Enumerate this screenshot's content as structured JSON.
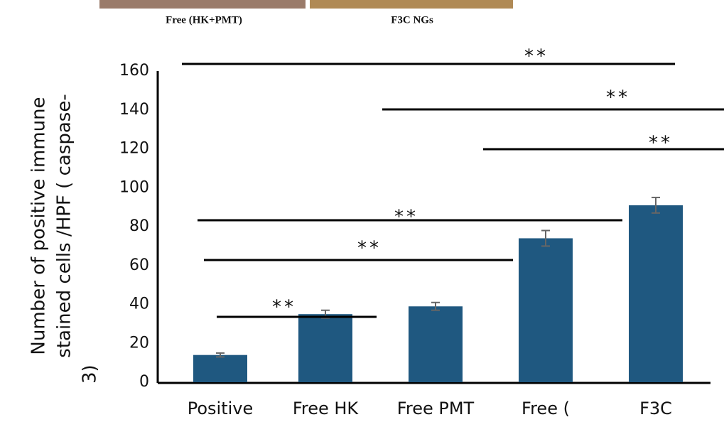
{
  "captions": [
    "Free (HK+PMT)",
    "F3C NGs"
  ],
  "chart_data": {
    "type": "bar",
    "y_label": [
      "Number of positive immune",
      "stained cells /HPF ( caspase-",
      "3)"
    ],
    "categories": [
      "Positive",
      "Free HK",
      "Free PMT",
      "Free (",
      "F3C"
    ],
    "values": [
      14,
      35,
      39,
      74,
      91
    ],
    "errors": [
      1,
      2,
      2,
      4,
      4
    ],
    "color": "#1f5880",
    "ylim": [
      0,
      160
    ],
    "yticks": [
      0,
      20,
      40,
      60,
      80,
      100,
      120,
      140,
      160
    ],
    "annotations": [
      "**",
      "**",
      "**",
      "**",
      "**",
      "**"
    ]
  }
}
